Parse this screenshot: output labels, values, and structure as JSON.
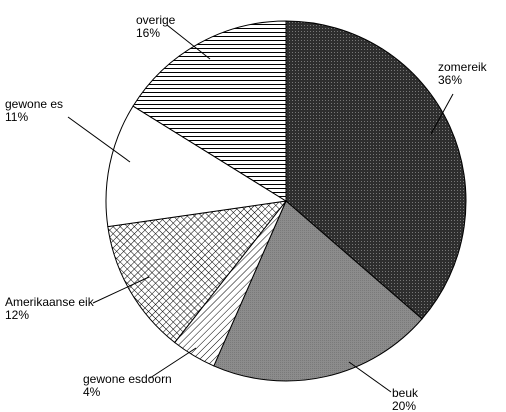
{
  "chart_data": {
    "type": "pie",
    "title": "",
    "slices": [
      {
        "name": "zomereik",
        "value": 36,
        "label": "36%",
        "pattern": "dark-dots"
      },
      {
        "name": "beuk",
        "value": 20,
        "label": "20%",
        "pattern": "gray"
      },
      {
        "name": "gewone esdoorn",
        "value": 4,
        "label": "4%",
        "pattern": "diagonal-lines"
      },
      {
        "name": "Amerikaanse eik",
        "value": 12,
        "label": "12%",
        "pattern": "crosshatch"
      },
      {
        "name": "gewone es",
        "value": 11,
        "label": "11%",
        "pattern": "white"
      },
      {
        "name": "overige",
        "value": 16,
        "label": "16%",
        "pattern": "horizontal-lines"
      }
    ],
    "start_angle_deg": 0,
    "direction": "clockwise",
    "colors": {
      "dark": "#333333",
      "gray": "#8c8c8c",
      "line": "#000000",
      "background": "#ffffff"
    }
  }
}
